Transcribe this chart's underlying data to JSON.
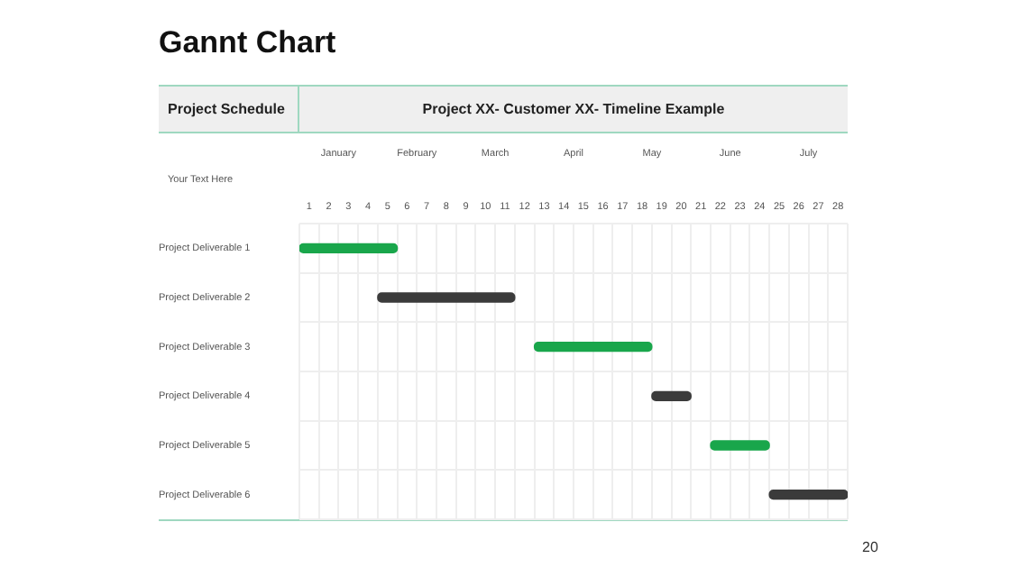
{
  "chart_data": {
    "type": "bar",
    "orientation": "horizontal",
    "title": "Gannt Chart",
    "subtitle": "Project XX- Customer XX- Timeline Example",
    "categories": [
      "Project Deliverable 1",
      "Project Deliverable 2",
      "Project Deliverable 3",
      "Project Deliverable 4",
      "Project Deliverable 5",
      "Project Deliverable 6"
    ],
    "base": [
      0,
      4,
      12,
      18,
      21,
      24
    ],
    "values": [
      5,
      7,
      6,
      2,
      3,
      4
    ],
    "colors": [
      "#19a64b",
      "#3b3b3b",
      "#19a64b",
      "#3b3b3b",
      "#19a64b",
      "#3b3b3b"
    ],
    "xlim": [
      0,
      28
    ],
    "xticks": [
      {
        "value": 0.5,
        "label": "1"
      },
      {
        "value": 1.5,
        "label": "2"
      },
      {
        "value": 2.5,
        "label": "3"
      },
      {
        "value": 3.5,
        "label": "4"
      },
      {
        "value": 4.5,
        "label": "5"
      },
      {
        "value": 5.5,
        "label": "6"
      },
      {
        "value": 6.5,
        "label": "7"
      },
      {
        "value": 7.5,
        "label": "8"
      },
      {
        "value": 8.5,
        "label": "9"
      },
      {
        "value": 9.5,
        "label": "10"
      },
      {
        "value": 10.5,
        "label": "11"
      },
      {
        "value": 11.5,
        "label": "12"
      },
      {
        "value": 12.5,
        "label": "13"
      },
      {
        "value": 13.5,
        "label": "14"
      },
      {
        "value": 14.5,
        "label": "15"
      },
      {
        "value": 15.5,
        "label": "16"
      },
      {
        "value": 16.5,
        "label": "17"
      },
      {
        "value": 17.5,
        "label": "18"
      },
      {
        "value": 18.5,
        "label": "19"
      },
      {
        "value": 19.5,
        "label": "20"
      },
      {
        "value": 20.5,
        "label": "21"
      },
      {
        "value": 21.5,
        "label": "22"
      },
      {
        "value": 22.5,
        "label": "23"
      },
      {
        "value": 23.5,
        "label": "24"
      },
      {
        "value": 24.5,
        "label": "25"
      },
      {
        "value": 25.5,
        "label": "26"
      },
      {
        "value": 26.5,
        "label": "27"
      },
      {
        "value": 27.5,
        "label": "28"
      }
    ],
    "grid": true,
    "annotations": [
      "Project Schedule",
      "Your Text Here",
      "January",
      "February",
      "March",
      "April",
      "May",
      "June",
      "July",
      "20"
    ]
  }
}
